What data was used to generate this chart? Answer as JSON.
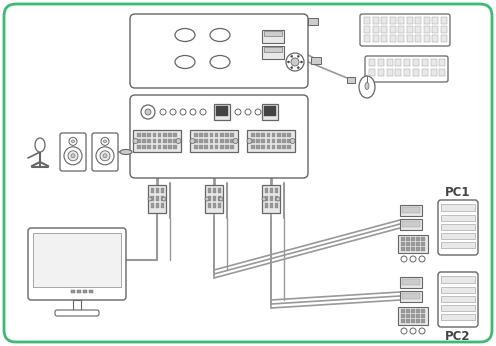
{
  "bg_color": "#ffffff",
  "border_color": "#3dba6f",
  "line_color": "#666666",
  "dark_color": "#444444",
  "gray_light": "#e8e8e8",
  "gray_mid": "#cccccc",
  "gray_dark": "#999999",
  "pc1_label": "PC1",
  "pc2_label": "PC2"
}
